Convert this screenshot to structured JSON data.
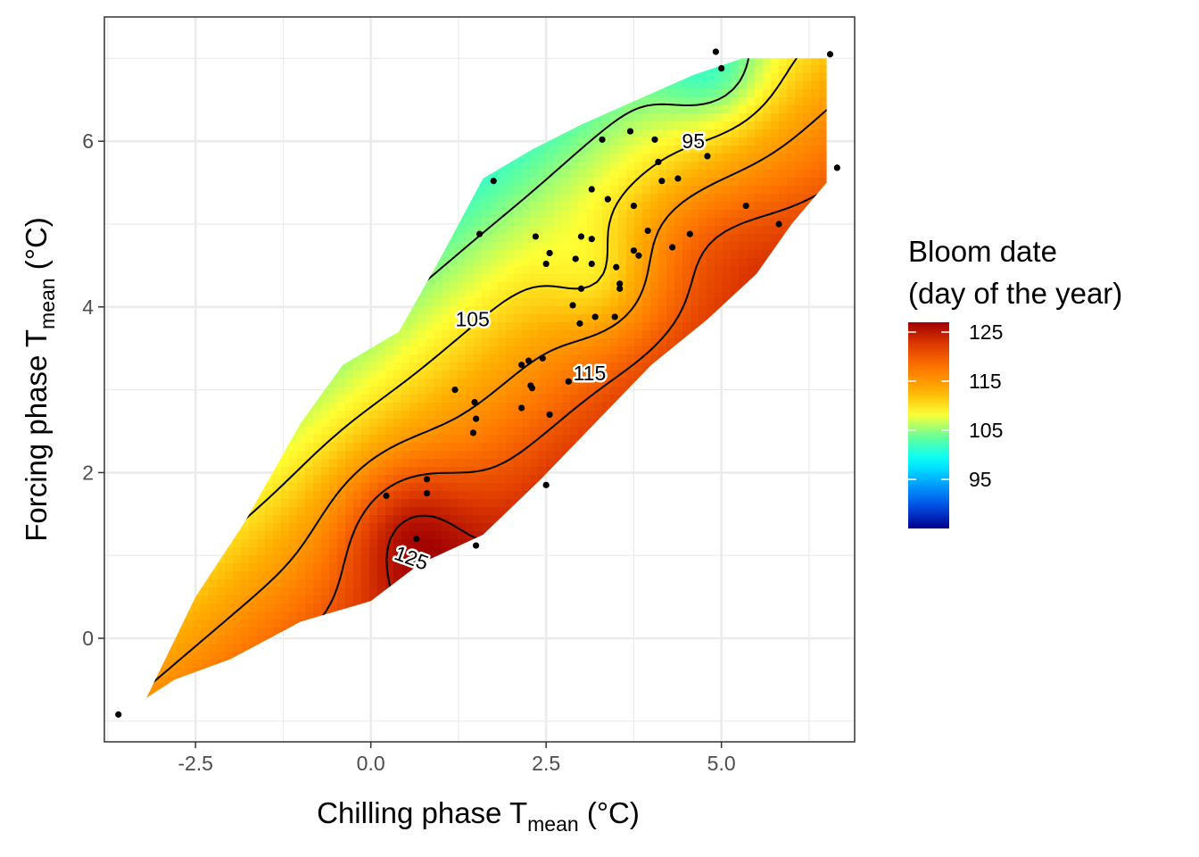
{
  "chart_data": {
    "type": "contour-heatmap",
    "title": "",
    "xlabel": {
      "main": "Chilling phase T",
      "sub": "mean",
      "unit": " (°C)"
    },
    "ylabel": {
      "main": "Forcing phase T",
      "sub": "mean",
      "unit": " (°C)"
    },
    "xlim": [
      -3.8,
      6.9
    ],
    "ylim": [
      -1.25,
      7.5
    ],
    "x_ticks": [
      -2.5,
      0.0,
      2.5,
      5.0
    ],
    "x_tick_labels": [
      "-2.5",
      "0.0",
      "2.5",
      "5.0"
    ],
    "y_ticks": [
      0,
      2,
      4,
      6
    ],
    "y_tick_labels": [
      "0",
      "2",
      "4",
      "6"
    ],
    "grid": true,
    "legend": {
      "title_line1": "Bloom date",
      "title_line2": "(day of the year)",
      "range": [
        85,
        127
      ],
      "ticks": [
        125,
        115,
        105,
        95
      ],
      "tick_labels": [
        "125",
        "115",
        "105",
        "95"
      ],
      "colors": [
        "#00008B",
        "#0050E6",
        "#00A5FF",
        "#00FFFF",
        "#66FF99",
        "#FFFF33",
        "#FFB000",
        "#FF7700",
        "#E03C00",
        "#A00000"
      ],
      "placement": "right"
    },
    "contour_levels": [
      90,
      95,
      100,
      105,
      110,
      115,
      120,
      125
    ],
    "contour_labels": [
      {
        "text": "95",
        "x": 4.6,
        "y": 6.0,
        "angle": 0
      },
      {
        "text": "105",
        "x": 1.45,
        "y": 3.85,
        "angle": 0
      },
      {
        "text": "115",
        "x": 3.12,
        "y": 3.2,
        "angle": 0
      },
      {
        "text": "125",
        "x": 0.58,
        "y": 0.97,
        "angle": 20
      }
    ],
    "observations": [
      {
        "x": -3.6,
        "y": -0.92
      },
      {
        "x": 0.22,
        "y": 1.72
      },
      {
        "x": 0.8,
        "y": 1.92
      },
      {
        "x": 0.8,
        "y": 1.75
      },
      {
        "x": 0.65,
        "y": 1.2
      },
      {
        "x": 1.5,
        "y": 1.12
      },
      {
        "x": 2.5,
        "y": 1.85
      },
      {
        "x": 1.2,
        "y": 3.0
      },
      {
        "x": 1.48,
        "y": 2.85
      },
      {
        "x": 1.5,
        "y": 2.65
      },
      {
        "x": 1.46,
        "y": 2.48
      },
      {
        "x": 2.15,
        "y": 2.78
      },
      {
        "x": 2.55,
        "y": 2.7
      },
      {
        "x": 2.15,
        "y": 3.3
      },
      {
        "x": 2.25,
        "y": 3.35
      },
      {
        "x": 2.28,
        "y": 3.05
      },
      {
        "x": 2.3,
        "y": 3.02
      },
      {
        "x": 2.45,
        "y": 3.38
      },
      {
        "x": 2.82,
        "y": 3.1
      },
      {
        "x": 1.55,
        "y": 4.88
      },
      {
        "x": 1.75,
        "y": 5.52
      },
      {
        "x": 2.35,
        "y": 4.85
      },
      {
        "x": 2.55,
        "y": 4.65
      },
      {
        "x": 2.5,
        "y": 4.52
      },
      {
        "x": 2.92,
        "y": 4.58
      },
      {
        "x": 2.88,
        "y": 4.02
      },
      {
        "x": 3.0,
        "y": 4.85
      },
      {
        "x": 3.15,
        "y": 4.82
      },
      {
        "x": 3.0,
        "y": 4.22
      },
      {
        "x": 2.98,
        "y": 3.8
      },
      {
        "x": 3.2,
        "y": 3.88
      },
      {
        "x": 3.15,
        "y": 4.52
      },
      {
        "x": 3.5,
        "y": 4.48
      },
      {
        "x": 3.55,
        "y": 4.28
      },
      {
        "x": 3.55,
        "y": 4.22
      },
      {
        "x": 3.48,
        "y": 3.88
      },
      {
        "x": 3.15,
        "y": 5.42
      },
      {
        "x": 3.38,
        "y": 5.3
      },
      {
        "x": 3.75,
        "y": 5.22
      },
      {
        "x": 3.3,
        "y": 6.02
      },
      {
        "x": 3.7,
        "y": 6.12
      },
      {
        "x": 4.05,
        "y": 6.02
      },
      {
        "x": 4.1,
        "y": 5.75
      },
      {
        "x": 4.15,
        "y": 5.52
      },
      {
        "x": 4.38,
        "y": 5.55
      },
      {
        "x": 3.75,
        "y": 4.68
      },
      {
        "x": 3.82,
        "y": 4.62
      },
      {
        "x": 3.95,
        "y": 4.92
      },
      {
        "x": 4.3,
        "y": 4.72
      },
      {
        "x": 4.55,
        "y": 4.88
      },
      {
        "x": 4.8,
        "y": 5.82
      },
      {
        "x": 5.35,
        "y": 5.22
      },
      {
        "x": 5.82,
        "y": 5.0
      },
      {
        "x": 4.92,
        "y": 7.08
      },
      {
        "x": 5.0,
        "y": 6.88
      },
      {
        "x": 6.55,
        "y": 7.05
      },
      {
        "x": 6.65,
        "y": 5.68
      }
    ]
  }
}
